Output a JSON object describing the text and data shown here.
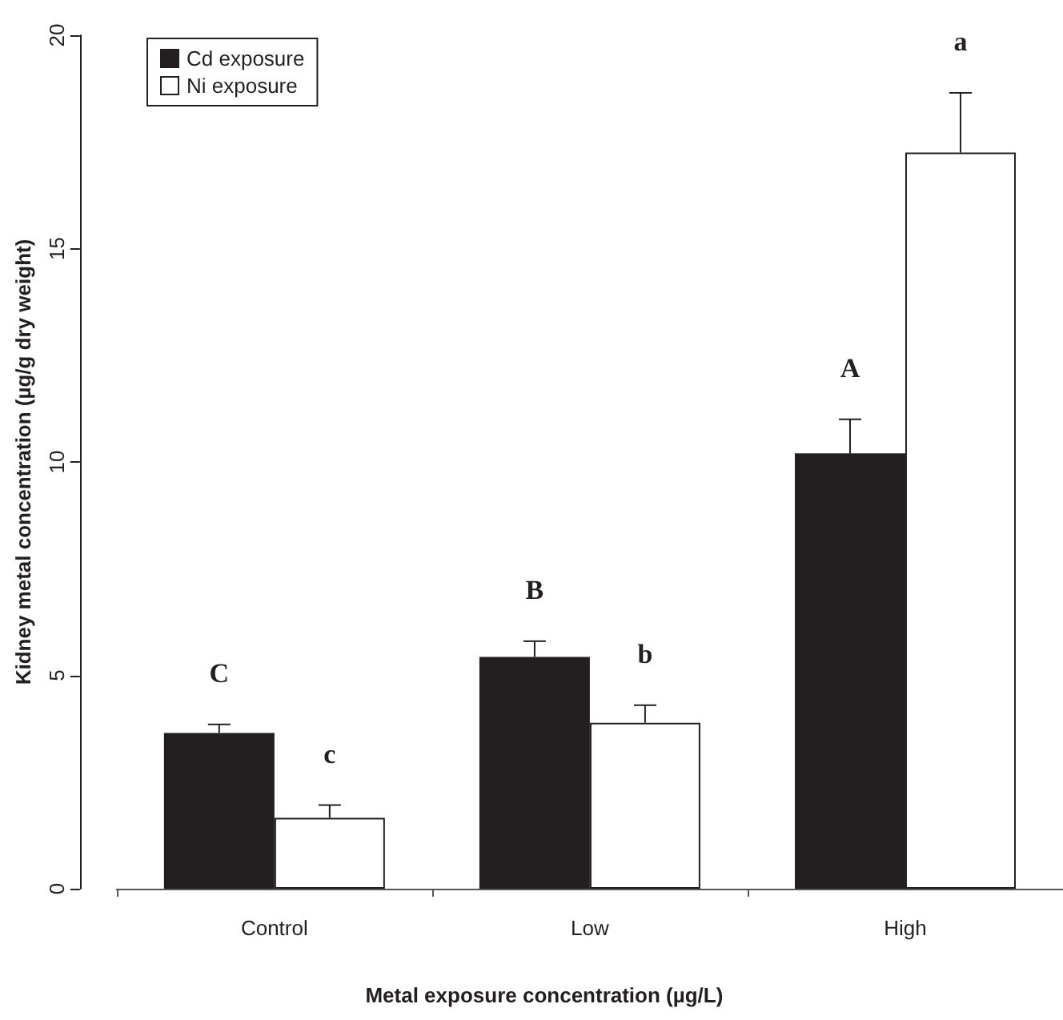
{
  "chart_data": {
    "type": "bar",
    "xlabel": "Metal exposure concentration (µg/L)",
    "ylabel": "Kidney metal concentration (µg/g dry weight)",
    "categories": [
      "Control",
      "Low",
      "High"
    ],
    "series": [
      {
        "name": "Cd exposure",
        "color": "#231f20",
        "values": [
          3.65,
          5.43,
          10.2
        ],
        "errors": [
          [
            3.65,
            3.85
          ],
          [
            5.43,
            5.8
          ],
          [
            10.2,
            11.0
          ]
        ]
      },
      {
        "name": "Ni exposure",
        "color": "#ffffff",
        "values": [
          1.66,
          3.89,
          17.25
        ],
        "errors": [
          [
            1.66,
            1.96
          ],
          [
            3.89,
            4.3
          ],
          [
            17.25,
            18.65
          ]
        ]
      }
    ],
    "ylim": [
      0,
      20
    ],
    "yticks": [
      0,
      5,
      10,
      15,
      20
    ],
    "grid": false,
    "legend": "top left",
    "annotations": [
      "C",
      "c",
      "B",
      "b",
      "A",
      "a"
    ]
  }
}
